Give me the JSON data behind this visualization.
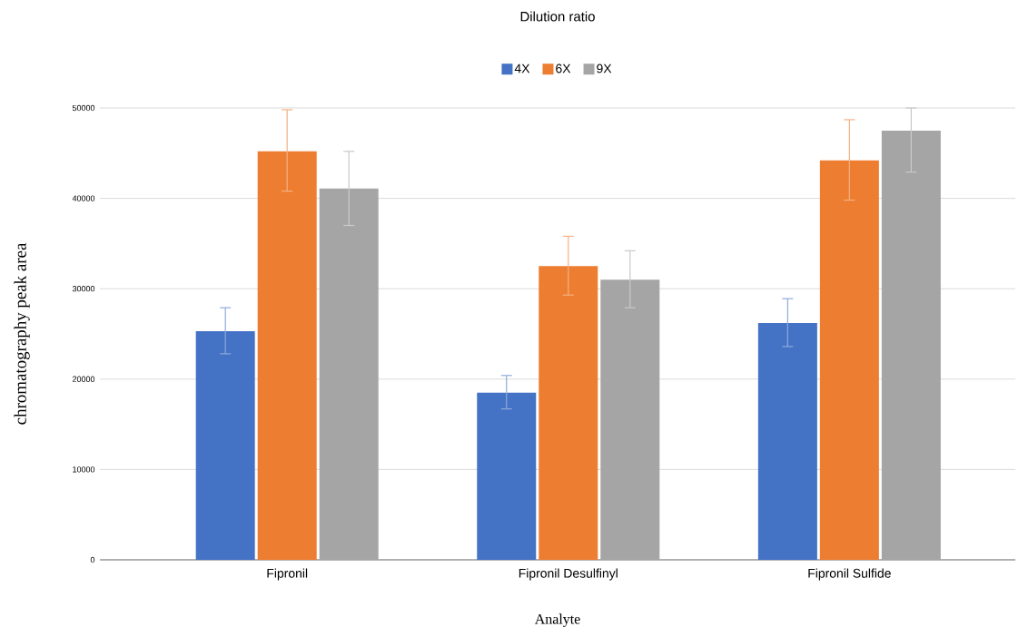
{
  "chart_data": {
    "type": "bar",
    "title": "Dilution ratio",
    "xlabel": "Analyte",
    "ylabel": "chromatography peak area",
    "categories": [
      "Fipronil",
      "Fipronil Desulfinyl",
      "Fipronil Sulfide"
    ],
    "series": [
      {
        "name": "4X",
        "color": "#4472c4",
        "values": [
          25300,
          18500,
          26200
        ],
        "errors": [
          [
            22800,
            27900
          ],
          [
            16700,
            20400
          ],
          [
            23600,
            28900
          ]
        ]
      },
      {
        "name": "6X",
        "color": "#ed7d31",
        "values": [
          45200,
          32500,
          44200
        ],
        "errors": [
          [
            40800,
            49800
          ],
          [
            29300,
            35800
          ],
          [
            39800,
            48700
          ]
        ]
      },
      {
        "name": "9X",
        "color": "#a5a5a5",
        "values": [
          41100,
          31000,
          47500
        ],
        "errors": [
          [
            37000,
            45200
          ],
          [
            27900,
            34200
          ],
          [
            42900,
            50000
          ]
        ]
      }
    ],
    "ylim": [
      0,
      50000
    ],
    "yticks": [
      0,
      10000,
      20000,
      30000,
      40000,
      50000
    ],
    "grid": "y",
    "legend": "top"
  }
}
